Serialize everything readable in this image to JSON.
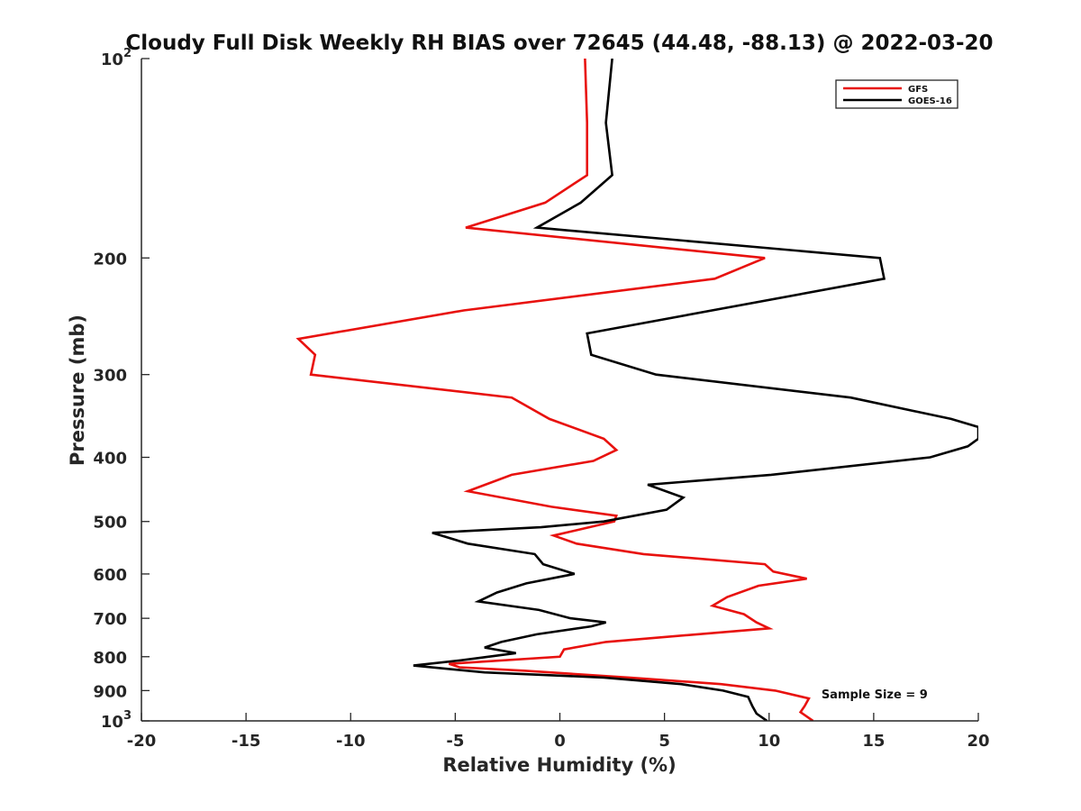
{
  "chart_data": {
    "type": "line",
    "title": "Cloudy Full Disk Weekly RH BIAS over 72645 (44.48, -88.13) @ 2022-03-20",
    "xlabel": "Relative Humidity (%)",
    "ylabel": "Pressure (mb)",
    "xlim": [
      -20,
      20
    ],
    "ylim": [
      100,
      1000
    ],
    "y_scale": "log",
    "y_reversed": true,
    "grid": false,
    "legend_position": "top-right",
    "x_ticks": [
      "-20",
      "-15",
      "-10",
      "-5",
      "0",
      "5",
      "10",
      "15",
      "20"
    ],
    "y_ticks": [
      {
        "value": 100,
        "base": "10",
        "exp": "2",
        "label": ""
      },
      {
        "value": 200,
        "label": "200"
      },
      {
        "value": 300,
        "label": "300"
      },
      {
        "value": 400,
        "label": "400"
      },
      {
        "value": 500,
        "label": "500"
      },
      {
        "value": 600,
        "label": "600"
      },
      {
        "value": 700,
        "label": "700"
      },
      {
        "value": 800,
        "label": "800"
      },
      {
        "value": 900,
        "label": "900"
      },
      {
        "value": 1000,
        "base": "10",
        "exp": "3",
        "label": ""
      }
    ],
    "series": [
      {
        "name": "GFS",
        "color": "#e8110e",
        "points": [
          [
            1.2,
            100
          ],
          [
            1.3,
            125
          ],
          [
            1.3,
            150
          ],
          [
            -0.7,
            165
          ],
          [
            -4.5,
            180
          ],
          [
            9.8,
            200
          ],
          [
            7.4,
            215
          ],
          [
            -4.6,
            240
          ],
          [
            -12.5,
            265
          ],
          [
            -11.7,
            280
          ],
          [
            -11.9,
            300
          ],
          [
            -2.3,
            325
          ],
          [
            -0.5,
            350
          ],
          [
            2.1,
            375
          ],
          [
            2.7,
            390
          ],
          [
            1.6,
            405
          ],
          [
            -2.3,
            425
          ],
          [
            -4.4,
            450
          ],
          [
            -0.4,
            475
          ],
          [
            2.7,
            490
          ],
          [
            2.6,
            500
          ],
          [
            -0.3,
            525
          ],
          [
            0.8,
            540
          ],
          [
            4.0,
            560
          ],
          [
            9.8,
            580
          ],
          [
            10.2,
            595
          ],
          [
            11.8,
            610
          ],
          [
            9.5,
            625
          ],
          [
            8.0,
            650
          ],
          [
            7.3,
            670
          ],
          [
            8.8,
            690
          ],
          [
            9.4,
            710
          ],
          [
            10.0,
            725
          ],
          [
            2.2,
            760
          ],
          [
            0.2,
            780
          ],
          [
            0.0,
            800
          ],
          [
            -5.3,
            820
          ],
          [
            -4.8,
            830
          ],
          [
            -1.7,
            840
          ],
          [
            3.3,
            860
          ],
          [
            7.7,
            880
          ],
          [
            10.3,
            900
          ],
          [
            11.9,
            925
          ],
          [
            11.7,
            950
          ],
          [
            11.5,
            970
          ],
          [
            12.1,
            1000
          ]
        ]
      },
      {
        "name": "GOES-16",
        "color": "#000000",
        "points": [
          [
            2.5,
            100
          ],
          [
            2.2,
            125
          ],
          [
            2.5,
            150
          ],
          [
            1.0,
            165
          ],
          [
            -1.1,
            180
          ],
          [
            15.3,
            200
          ],
          [
            15.5,
            215
          ],
          [
            1.3,
            260
          ],
          [
            1.5,
            280
          ],
          [
            4.6,
            300
          ],
          [
            13.9,
            325
          ],
          [
            18.7,
            350
          ],
          [
            20.0,
            360
          ],
          [
            20.0,
            375
          ],
          [
            19.5,
            385
          ],
          [
            17.7,
            400
          ],
          [
            10.1,
            425
          ],
          [
            4.2,
            440
          ],
          [
            5.9,
            460
          ],
          [
            5.1,
            480
          ],
          [
            2.1,
            500
          ],
          [
            -0.9,
            510
          ],
          [
            -6.1,
            520
          ],
          [
            -4.4,
            540
          ],
          [
            -1.2,
            560
          ],
          [
            -0.8,
            580
          ],
          [
            0.7,
            600
          ],
          [
            -1.6,
            620
          ],
          [
            -3.0,
            640
          ],
          [
            -3.9,
            660
          ],
          [
            -1.0,
            680
          ],
          [
            0.5,
            700
          ],
          [
            2.2,
            710
          ],
          [
            1.5,
            720
          ],
          [
            -1.1,
            740
          ],
          [
            -2.8,
            760
          ],
          [
            -3.6,
            775
          ],
          [
            -2.1,
            790
          ],
          [
            -4.7,
            810
          ],
          [
            -7.0,
            825
          ],
          [
            -3.6,
            845
          ],
          [
            2.1,
            860
          ],
          [
            5.8,
            880
          ],
          [
            7.8,
            900
          ],
          [
            9.0,
            920
          ],
          [
            9.1,
            935
          ],
          [
            9.2,
            950
          ],
          [
            9.4,
            975
          ],
          [
            9.9,
            1000
          ]
        ]
      }
    ],
    "annotations": [
      {
        "text": "Sample Size = 9",
        "x": 12.5,
        "y": 910
      }
    ]
  }
}
